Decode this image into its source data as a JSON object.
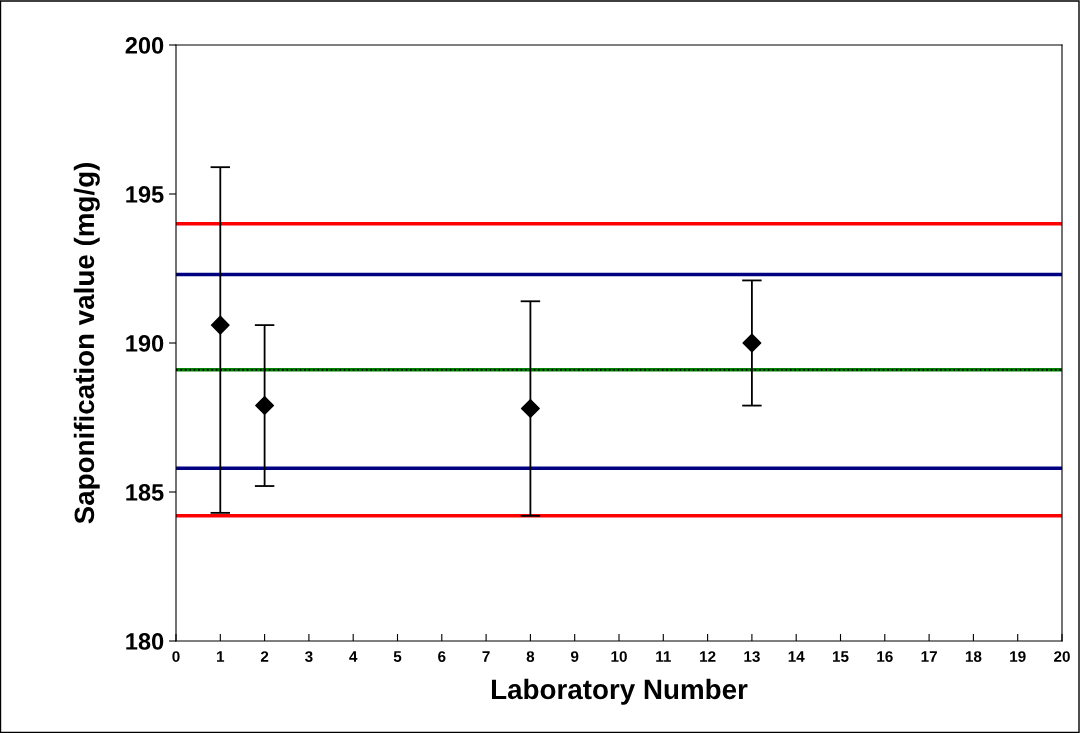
{
  "chart_data": {
    "type": "scatter",
    "xlabel": "Laboratory Number",
    "ylabel": "Saponification value (mg/g)",
    "x": [
      1,
      2,
      8,
      13
    ],
    "series": [
      {
        "color": "#000000",
        "values": [
          190.6,
          187.9,
          187.8,
          190.0
        ],
        "errors": [
          [
            184.3,
            195.9
          ],
          [
            185.2,
            190.6
          ],
          [
            184.2,
            191.4
          ],
          [
            187.9,
            192.1
          ]
        ]
      }
    ],
    "marker": "diamond",
    "xlim": [
      0,
      20
    ],
    "xticks": [
      0,
      1,
      2,
      3,
      4,
      5,
      6,
      7,
      8,
      9,
      10,
      11,
      12,
      13,
      14,
      15,
      16,
      17,
      18,
      19,
      20
    ],
    "ylim": [
      180,
      200
    ],
    "yticks": [
      180,
      185,
      190,
      195,
      200
    ],
    "grid": false,
    "ref_lines": [
      {
        "axis": "y",
        "value": 194.0,
        "color": "#ff0000",
        "line_style": "solid"
      },
      {
        "axis": "y",
        "value": 192.3,
        "color": "#000080",
        "line_style": "solid"
      },
      {
        "axis": "y",
        "value": 189.1,
        "color": "#008000",
        "line_style": "solid"
      },
      {
        "axis": "y",
        "value": 189.1,
        "color": "#000000",
        "line_style": "dotted"
      },
      {
        "axis": "y",
        "value": 185.8,
        "color": "#000080",
        "line_style": "solid"
      },
      {
        "axis": "y",
        "value": 184.2,
        "color": "#ff0000",
        "line_style": "solid"
      }
    ]
  }
}
